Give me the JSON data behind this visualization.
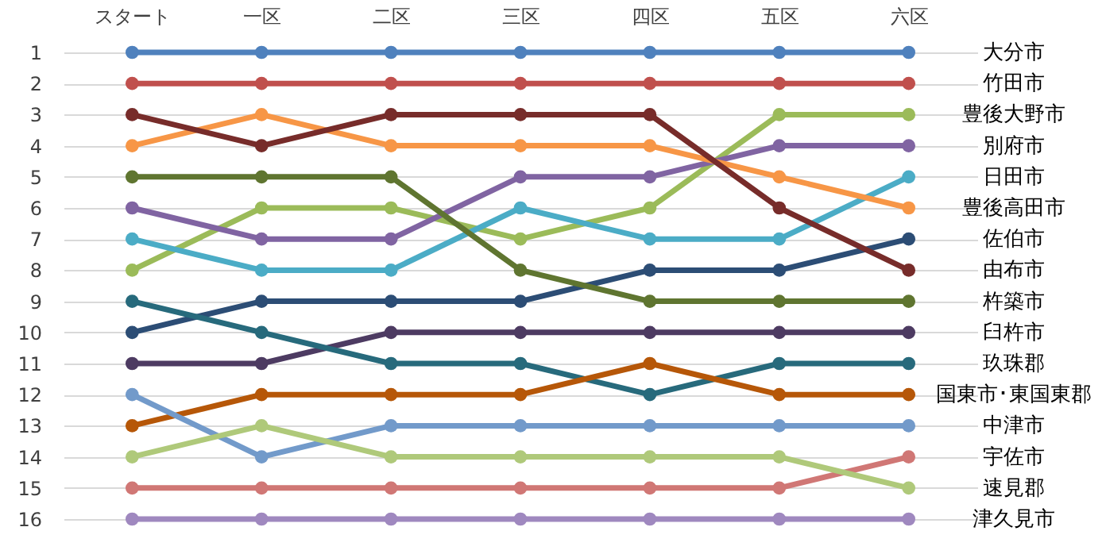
{
  "chart_data": {
    "type": "line",
    "categories": [
      "スタート",
      "一区",
      "二区",
      "三区",
      "四区",
      "五区",
      "六区"
    ],
    "series": [
      {
        "name": "大分市",
        "color": "#4f81bd",
        "values": [
          1,
          1,
          1,
          1,
          1,
          1,
          1
        ]
      },
      {
        "name": "竹田市",
        "color": "#c0504d",
        "values": [
          2,
          2,
          2,
          2,
          2,
          2,
          2
        ]
      },
      {
        "name": "豊後大野市",
        "color": "#9bbb59",
        "values": [
          8,
          6,
          6,
          7,
          6,
          3,
          3
        ]
      },
      {
        "name": "別府市",
        "color": "#8064a2",
        "values": [
          6,
          7,
          7,
          5,
          5,
          4,
          4
        ]
      },
      {
        "name": "日田市",
        "color": "#4bacc6",
        "values": [
          7,
          8,
          8,
          6,
          7,
          7,
          5
        ]
      },
      {
        "name": "豊後高田市",
        "color": "#f79646",
        "values": [
          4,
          3,
          4,
          4,
          4,
          5,
          6
        ]
      },
      {
        "name": "佐伯市",
        "color": "#2c4d75",
        "values": [
          10,
          9,
          9,
          9,
          8,
          8,
          7
        ]
      },
      {
        "name": "由布市",
        "color": "#772c2a",
        "values": [
          3,
          4,
          3,
          3,
          3,
          6,
          8
        ]
      },
      {
        "name": "杵築市",
        "color": "#5f7530",
        "values": [
          5,
          5,
          5,
          8,
          9,
          9,
          9
        ]
      },
      {
        "name": "臼杵市",
        "color": "#4d3b62",
        "values": [
          11,
          11,
          10,
          10,
          10,
          10,
          10
        ]
      },
      {
        "name": "玖珠郡",
        "color": "#276a7c",
        "values": [
          9,
          10,
          11,
          11,
          12,
          11,
          11
        ]
      },
      {
        "name": "国東市･東国東郡",
        "color": "#b65708",
        "values": [
          13,
          12,
          12,
          12,
          11,
          12,
          12
        ]
      },
      {
        "name": "中津市",
        "color": "#729aca",
        "values": [
          12,
          14,
          13,
          13,
          13,
          13,
          13
        ]
      },
      {
        "name": "宇佐市",
        "color": "#d07775",
        "values": [
          15,
          15,
          15,
          15,
          15,
          15,
          14
        ]
      },
      {
        "name": "速見郡",
        "color": "#afc97a",
        "values": [
          14,
          13,
          14,
          14,
          14,
          14,
          15
        ]
      },
      {
        "name": "津久見市",
        "color": "#9f88bf",
        "values": [
          16,
          16,
          16,
          16,
          16,
          16,
          16
        ]
      }
    ],
    "ylim": [
      16,
      1
    ],
    "yticks": [
      1,
      2,
      3,
      4,
      5,
      6,
      7,
      8,
      9,
      10,
      11,
      12,
      13,
      14,
      15,
      16
    ],
    "grid": "y",
    "marker": "circle",
    "line_style": "solid"
  }
}
